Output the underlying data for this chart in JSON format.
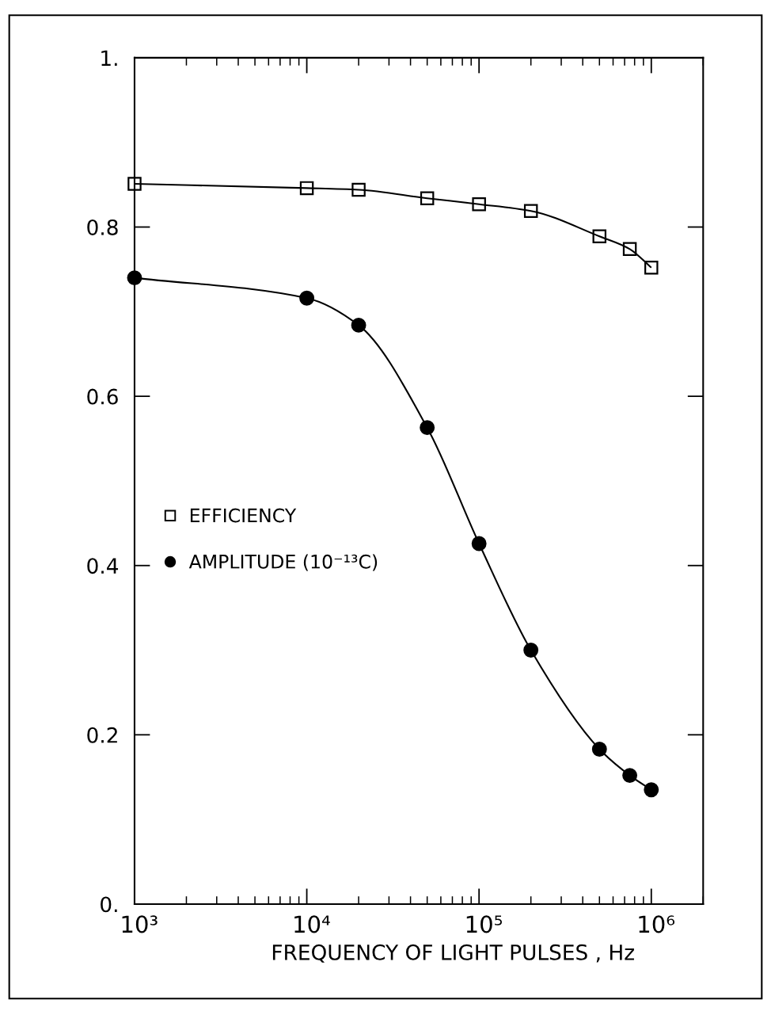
{
  "chart_data": {
    "type": "line",
    "xlabel": "FREQUENCY OF LIGHT PULSES , Hz",
    "x": [
      1000,
      10000,
      20000,
      50000,
      100000,
      200000,
      500000,
      750000,
      1000000
    ],
    "series": [
      {
        "name": "EFFICIENCY",
        "color": "#000000",
        "marker": "square",
        "values": [
          0.851,
          0.846,
          0.844,
          0.834,
          0.827,
          0.819,
          0.789,
          0.774,
          0.752
        ]
      },
      {
        "name": "AMPLITUDE (10⁻¹³C)",
        "color": "#000000",
        "marker": "circle",
        "values": [
          0.74,
          0.716,
          0.684,
          0.563,
          0.426,
          0.3,
          0.183,
          0.152,
          0.135
        ]
      }
    ],
    "log": "x",
    "xlim": [
      1000,
      2000000
    ],
    "xticks": [
      {
        "value": 1000,
        "label": "10³"
      },
      {
        "value": 10000,
        "label": "10⁴"
      },
      {
        "value": 100000,
        "label": "10⁵"
      },
      {
        "value": 1000000,
        "label": "10⁶"
      }
    ],
    "ylim": [
      0,
      1
    ],
    "yticks": [
      {
        "value": 0,
        "label": "0."
      },
      0.2,
      0.4,
      0.6,
      0.8,
      {
        "value": 1,
        "label": "1."
      }
    ],
    "grid": false,
    "legend": "left",
    "line_style": "solid"
  }
}
